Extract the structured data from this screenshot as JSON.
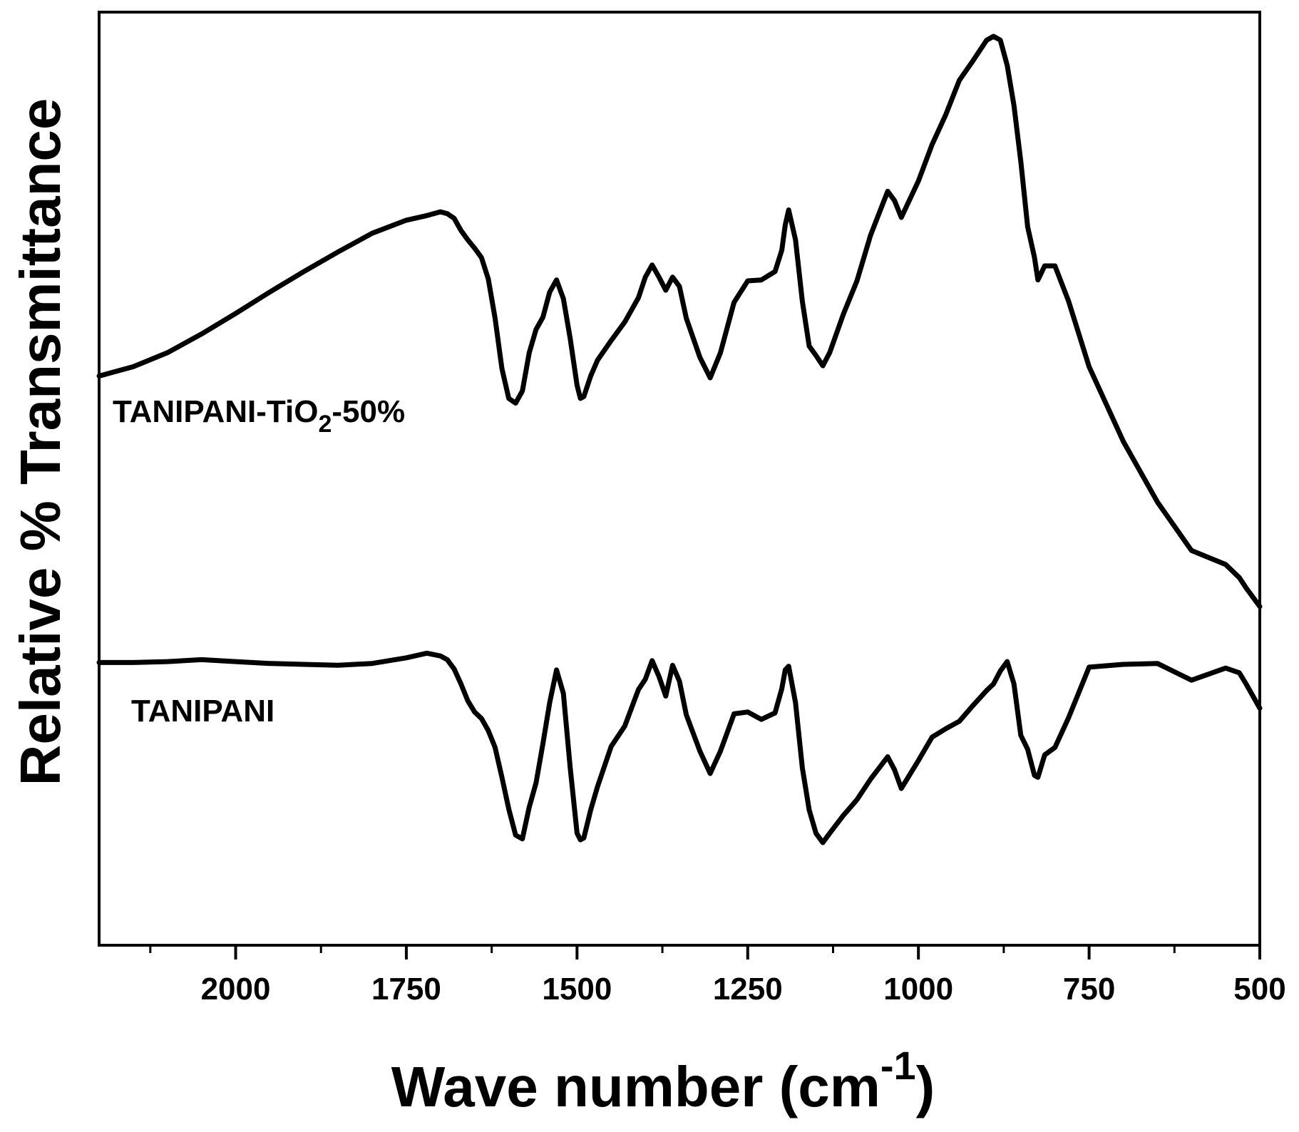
{
  "chart_data": {
    "type": "line",
    "title": "",
    "xlabel": "Wave number (cm",
    "xlabel_superscript": "-1",
    "xlabel_close": ")",
    "ylabel": "Relative % Transmittance",
    "xlim": [
      2200,
      500
    ],
    "ylim": [
      0,
      100
    ],
    "x_ticks": [
      2000,
      1750,
      1500,
      1250,
      1000,
      750,
      500
    ],
    "x_tick_labels": [
      "2000",
      "1750",
      "1500",
      "1250",
      "1000",
      "750",
      "500"
    ],
    "x_minor_ticks": [
      2125,
      1875,
      1625,
      1375,
      1125,
      875,
      625
    ],
    "y_ticks_shown": false,
    "grid": false,
    "color": "#000000",
    "series": [
      {
        "name": "TANIPANI-TiO2-50%",
        "label_main": "TANIPANI-TiO",
        "label_sub": "2",
        "label_tail": "-50%",
        "x": [
          2200,
          2150,
          2100,
          2050,
          2000,
          1950,
          1900,
          1850,
          1800,
          1750,
          1720,
          1700,
          1690,
          1680,
          1670,
          1660,
          1650,
          1640,
          1630,
          1620,
          1610,
          1600,
          1590,
          1580,
          1570,
          1560,
          1550,
          1540,
          1530,
          1520,
          1510,
          1500,
          1495,
          1490,
          1480,
          1470,
          1450,
          1430,
          1410,
          1400,
          1390,
          1380,
          1370,
          1360,
          1350,
          1340,
          1320,
          1305,
          1290,
          1270,
          1250,
          1230,
          1210,
          1200,
          1195,
          1190,
          1180,
          1170,
          1160,
          1150,
          1140,
          1130,
          1110,
          1090,
          1070,
          1045,
          1035,
          1025,
          1000,
          980,
          960,
          940,
          920,
          900,
          890,
          880,
          870,
          860,
          850,
          840,
          830,
          825,
          815,
          800,
          780,
          750,
          700,
          650,
          600,
          550,
          530,
          520,
          500
        ],
        "y": [
          61.0,
          62.0,
          63.5,
          65.5,
          67.7,
          70.0,
          72.2,
          74.3,
          76.3,
          77.7,
          78.2,
          78.6,
          78.4,
          77.9,
          76.6,
          75.6,
          74.7,
          73.7,
          71.4,
          67.2,
          61.8,
          58.6,
          58.1,
          59.4,
          63.5,
          66.0,
          67.3,
          70.0,
          71.3,
          69.3,
          65.0,
          60.0,
          58.6,
          58.8,
          61.0,
          62.7,
          64.8,
          66.8,
          69.4,
          71.6,
          72.9,
          71.6,
          70.2,
          71.6,
          70.6,
          67.2,
          63.0,
          60.8,
          63.5,
          68.9,
          71.2,
          71.3,
          72.2,
          74.5,
          77.2,
          78.8,
          75.6,
          69.0,
          64.2,
          63.2,
          62.1,
          63.5,
          67.6,
          71.2,
          76.1,
          80.8,
          79.8,
          78.0,
          81.9,
          85.8,
          89.0,
          92.7,
          94.8,
          97.0,
          97.4,
          97.0,
          94.3,
          90.0,
          84.0,
          77.0,
          73.7,
          71.3,
          72.8,
          72.8,
          69.0,
          62.0,
          54.0,
          47.5,
          42.3,
          40.8,
          39.4,
          38.3,
          36.3
        ]
      },
      {
        "name": "TANIPANI",
        "x": [
          2200,
          2150,
          2100,
          2050,
          2000,
          1950,
          1900,
          1850,
          1800,
          1750,
          1720,
          1700,
          1690,
          1680,
          1670,
          1660,
          1650,
          1640,
          1630,
          1620,
          1610,
          1600,
          1590,
          1580,
          1570,
          1560,
          1550,
          1540,
          1530,
          1520,
          1510,
          1500,
          1495,
          1490,
          1480,
          1470,
          1450,
          1430,
          1410,
          1400,
          1390,
          1380,
          1370,
          1360,
          1350,
          1340,
          1320,
          1305,
          1290,
          1270,
          1250,
          1230,
          1210,
          1200,
          1195,
          1190,
          1180,
          1170,
          1160,
          1150,
          1140,
          1130,
          1110,
          1090,
          1070,
          1045,
          1035,
          1025,
          1000,
          980,
          960,
          940,
          920,
          900,
          890,
          880,
          870,
          860,
          850,
          840,
          830,
          825,
          815,
          800,
          780,
          750,
          700,
          650,
          600,
          550,
          530,
          520,
          500
        ],
        "y": [
          30.3,
          30.3,
          30.4,
          30.6,
          30.4,
          30.2,
          30.1,
          30.0,
          30.2,
          30.8,
          31.3,
          31.0,
          30.6,
          29.6,
          28.0,
          26.2,
          25.0,
          24.3,
          23.0,
          21.2,
          18.0,
          14.6,
          11.8,
          11.4,
          14.8,
          17.4,
          21.6,
          26.0,
          29.5,
          27.0,
          19.0,
          12.0,
          11.3,
          11.5,
          14.5,
          17.0,
          21.3,
          23.5,
          27.4,
          28.5,
          30.5,
          28.8,
          26.7,
          30.0,
          28.3,
          24.7,
          20.8,
          18.4,
          20.8,
          24.8,
          25.0,
          24.2,
          24.9,
          27.5,
          29.5,
          29.9,
          26.0,
          19.0,
          14.5,
          12.0,
          11.0,
          12.0,
          13.9,
          15.6,
          17.8,
          20.2,
          18.8,
          16.8,
          19.8,
          22.3,
          23.2,
          24.0,
          25.7,
          27.3,
          28.0,
          29.4,
          30.4,
          28.0,
          22.5,
          21.0,
          18.2,
          18.0,
          20.4,
          21.2,
          24.4,
          29.8,
          30.1,
          30.2,
          28.4,
          29.7,
          29.2,
          28.0,
          25.4
        ]
      }
    ]
  }
}
